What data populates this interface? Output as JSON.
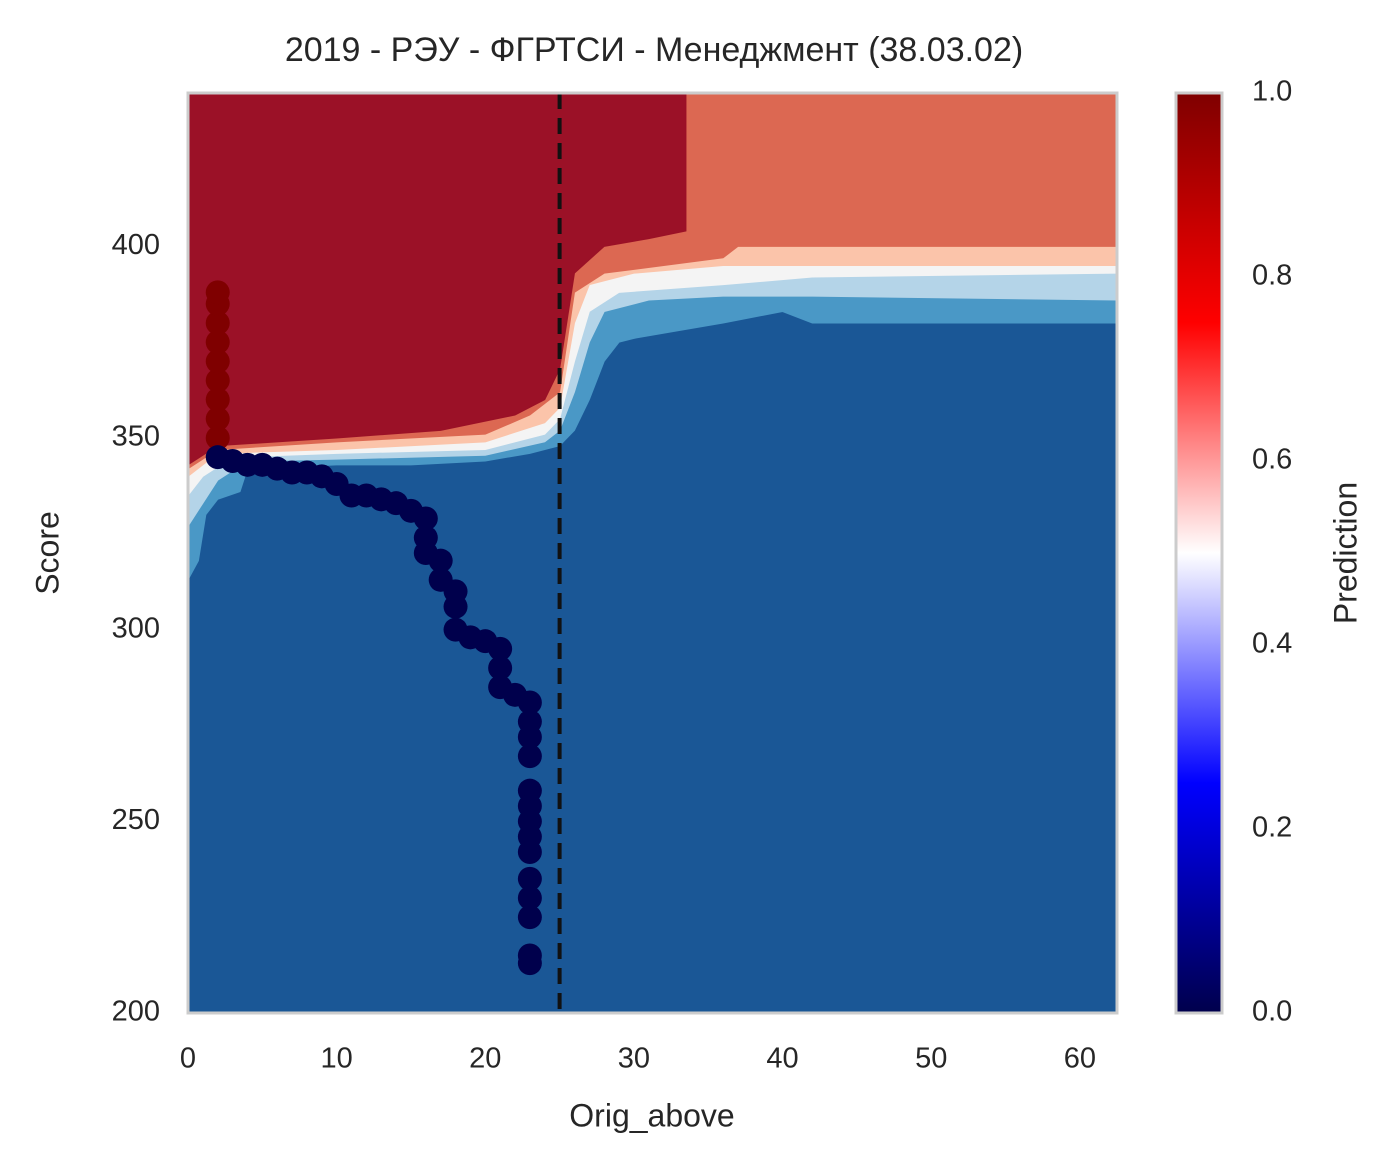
{
  "chart_data": {
    "type": "contour",
    "title": "2019 - РЭУ - ФГРТСИ - Менеджмент (38.03.02)",
    "x_label": "Orig_above",
    "y_label": "Score",
    "xlim": [
      0,
      62.5
    ],
    "ylim": [
      200,
      440
    ],
    "xticks": [
      0,
      10,
      20,
      30,
      40,
      50,
      60
    ],
    "yticks": [
      200,
      250,
      300,
      350,
      400
    ],
    "contours": [
      {
        "color": "#1a5796",
        "x": [
          0,
          62.5
        ],
        "y": [
          200,
          200
        ]
      },
      {
        "color": "#4a98c6",
        "x": [
          0,
          0.7,
          1.2,
          2,
          3.5,
          4,
          10,
          15,
          20,
          23,
          25,
          26,
          27,
          28,
          29,
          30,
          33,
          36,
          40,
          42,
          62.5
        ],
        "y": [
          313,
          318,
          330,
          334,
          336,
          342,
          343,
          343,
          344,
          346,
          348,
          352,
          360,
          370,
          375,
          376,
          378,
          380,
          383,
          380,
          380
        ]
      },
      {
        "color": "#b4d4e8",
        "x": [
          0,
          1,
          2,
          4,
          10,
          20,
          24,
          25,
          26,
          27,
          28,
          31,
          36,
          42,
          62.5
        ],
        "y": [
          327,
          333,
          339,
          344,
          344.5,
          345.5,
          349,
          352,
          362,
          375,
          383,
          386,
          387,
          387,
          386
        ]
      },
      {
        "color": "#f4f4f4",
        "x": [
          0,
          1,
          3,
          10,
          20,
          24,
          25,
          26,
          27,
          29,
          36,
          42,
          62.5
        ],
        "y": [
          335,
          340,
          345,
          346,
          347,
          351,
          355,
          370,
          383,
          388,
          390,
          392,
          393
        ]
      },
      {
        "color": "#fbc4aa",
        "x": [
          0,
          2,
          10,
          20,
          24,
          25,
          26,
          27,
          30,
          36,
          62.5
        ],
        "y": [
          340,
          346,
          347,
          349,
          354,
          358,
          380,
          390,
          393,
          395,
          395
        ]
      },
      {
        "color": "#dc6852",
        "x": [
          0,
          2,
          10,
          20,
          23,
          25,
          26,
          28,
          36,
          37,
          62.5
        ],
        "y": [
          342,
          347,
          349,
          351,
          356,
          362,
          388,
          393,
          397,
          400,
          400
        ]
      },
      {
        "color": "#9b1127",
        "x": [
          0,
          2,
          10,
          17,
          22,
          24,
          25,
          26,
          28,
          31,
          33.5
        ],
        "y": [
          343,
          348,
          350,
          352,
          356,
          360,
          368,
          393,
          400,
          402,
          404
        ]
      }
    ],
    "points": [
      {
        "color": "#7f0000",
        "x": [
          2,
          2,
          2,
          2,
          2,
          2,
          2,
          2,
          2
        ],
        "y": [
          350,
          355,
          360,
          365,
          370,
          375,
          380,
          385,
          388
        ]
      },
      {
        "color": "#00004c",
        "x": [
          2,
          3,
          4,
          5,
          6,
          7,
          8,
          9,
          10,
          11,
          12,
          13,
          14,
          15,
          16,
          16,
          16,
          17,
          17,
          18,
          18,
          18,
          19,
          20,
          21,
          21,
          21,
          22,
          23,
          23,
          23,
          23,
          23,
          23,
          23,
          23,
          23,
          23,
          23,
          23,
          23,
          23
        ],
        "y": [
          345,
          344,
          343,
          343,
          342,
          341,
          341,
          340,
          338,
          335,
          335,
          334,
          333,
          331,
          329,
          324,
          320,
          318,
          313,
          310,
          306,
          300,
          298,
          297,
          295,
          290,
          285,
          283,
          281,
          276,
          272,
          267,
          258,
          254,
          250,
          246,
          242,
          235,
          230,
          225,
          215,
          213
        ]
      }
    ],
    "vline": 25,
    "colorbar": {
      "label": "Prediction",
      "lim": [
        0,
        1
      ],
      "colors": [
        "#00004c",
        "#0000ff",
        "#ffffff",
        "#ff0000",
        "#7f0000"
      ],
      "ticks": [
        {
          "value": 0,
          "label": "0.0"
        },
        {
          "value": 0.2,
          "label": "0.2"
        },
        {
          "value": 0.4,
          "label": "0.4"
        },
        {
          "value": 0.6,
          "label": "0.6"
        },
        {
          "value": 0.8,
          "label": "0.8"
        },
        {
          "value": 1,
          "label": "1.0"
        }
      ]
    }
  }
}
